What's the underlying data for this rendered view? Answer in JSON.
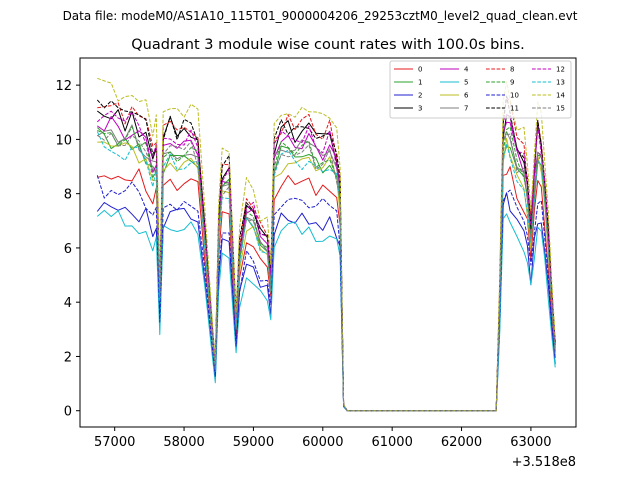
{
  "chart_data": {
    "type": "line",
    "suptitle": "Data file: modeM0/AS1A10_115T01_9000004206_29253cztM0_level2_quad_clean.evt",
    "title": "Quadrant 3 module wise count rates with 100.0s bins.",
    "xlabel": "",
    "ylabel": "",
    "offset_text": "+3.518e8",
    "xlim": [
      56500,
      63650
    ],
    "ylim": [
      -0.6,
      13.0
    ],
    "xticks": [
      57000,
      58000,
      59000,
      60000,
      61000,
      62000,
      63000
    ],
    "yticks": [
      0,
      2,
      4,
      6,
      8,
      10,
      12
    ],
    "grid": false,
    "legend_position": "top-right",
    "x": [
      56750,
      56850,
      56950,
      57050,
      57150,
      57250,
      57350,
      57450,
      57550,
      57600,
      57650,
      57700,
      57800,
      57900,
      58000,
      58100,
      58200,
      58300,
      58400,
      58450,
      58500,
      58550,
      58650,
      58750,
      58800,
      58900,
      59000,
      59100,
      59200,
      59250,
      59300,
      59400,
      59500,
      59600,
      59700,
      59800,
      59900,
      60000,
      60100,
      60200,
      60250,
      60300,
      60350,
      61000,
      62000,
      62450,
      62500,
      62550,
      62600,
      62650,
      62700,
      62800,
      62900,
      62950,
      63000,
      63050,
      63100,
      63150,
      63200,
      63250,
      63300,
      63350
    ],
    "base_profile": [
      1.0,
      0.99,
      0.99,
      0.98,
      0.97,
      0.98,
      0.95,
      0.93,
      0.86,
      0.88,
      0.4,
      0.9,
      0.95,
      0.92,
      0.93,
      0.94,
      0.9,
      0.6,
      0.3,
      0.15,
      0.65,
      0.8,
      0.82,
      0.3,
      0.55,
      0.7,
      0.68,
      0.6,
      0.58,
      0.45,
      0.88,
      0.93,
      0.94,
      0.92,
      0.93,
      0.94,
      0.9,
      0.9,
      0.92,
      0.85,
      0.75,
      0.02,
      0.0,
      0.0,
      0.0,
      0.0,
      0.0,
      0.4,
      0.95,
      1.0,
      0.98,
      0.88,
      0.85,
      0.76,
      0.62,
      0.8,
      0.93,
      0.9,
      0.75,
      0.6,
      0.4,
      0.22
    ],
    "series": [
      {
        "name": "0",
        "color": "#e41a1c",
        "dash": "solid",
        "level": 9.0
      },
      {
        "name": "1",
        "color": "#2ca02c",
        "dash": "solid",
        "level": 10.1
      },
      {
        "name": "2",
        "color": "#1f1fcf",
        "dash": "solid",
        "level": 7.7
      },
      {
        "name": "3",
        "color": "#000000",
        "dash": "solid",
        "level": 11.0
      },
      {
        "name": "4",
        "color": "#bf00bf",
        "dash": "solid",
        "level": 10.6
      },
      {
        "name": "5",
        "color": "#17becf",
        "dash": "solid",
        "level": 7.2
      },
      {
        "name": "6",
        "color": "#bcbd22",
        "dash": "solid",
        "level": 9.8
      },
      {
        "name": "7",
        "color": "#7f7f7f",
        "dash": "solid",
        "level": 10.4
      },
      {
        "name": "8",
        "color": "#e41a1c",
        "dash": "dashed",
        "level": 11.3
      },
      {
        "name": "9",
        "color": "#2ca02c",
        "dash": "dashed",
        "level": 10.3
      },
      {
        "name": "10",
        "color": "#1f1fcf",
        "dash": "dashed",
        "level": 8.3
      },
      {
        "name": "11",
        "color": "#000000",
        "dash": "dashed",
        "level": 11.2
      },
      {
        "name": "12",
        "color": "#bf00bf",
        "dash": "dashed",
        "level": 10.9
      },
      {
        "name": "13",
        "color": "#17becf",
        "dash": "dashed",
        "level": 9.9
      },
      {
        "name": "14",
        "color": "#bcbd22",
        "dash": "dashed",
        "level": 12.0
      },
      {
        "name": "15",
        "color": "#7f7f7f",
        "dash": "dashed",
        "level": 10.2
      }
    ]
  }
}
